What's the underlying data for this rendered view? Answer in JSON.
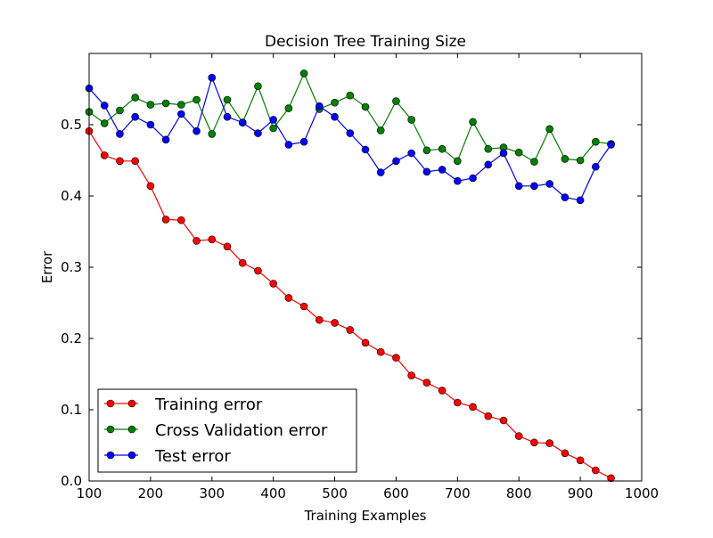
{
  "chart_data": {
    "type": "line",
    "title": "Decision Tree Training Size",
    "xlabel": "Training Examples",
    "ylabel": "Error",
    "xlim": [
      100,
      1000
    ],
    "ylim": [
      0.0,
      0.6
    ],
    "xticks": [
      100,
      200,
      300,
      400,
      500,
      600,
      700,
      800,
      900,
      1000
    ],
    "xtick_labels": [
      "100",
      "200",
      "300",
      "400",
      "500",
      "600",
      "700",
      "800",
      "900",
      "1000"
    ],
    "yticks": [
      0.0,
      0.1,
      0.2,
      0.3,
      0.4,
      0.5
    ],
    "ytick_labels": [
      "0.0",
      "0.1",
      "0.2",
      "0.3",
      "0.4",
      "0.5"
    ],
    "grid": false,
    "legend_position": "lower-left",
    "x": [
      100,
      125,
      150,
      175,
      200,
      225,
      250,
      275,
      300,
      325,
      350,
      375,
      400,
      425,
      450,
      475,
      500,
      525,
      550,
      575,
      600,
      625,
      650,
      675,
      700,
      725,
      750,
      775,
      800,
      825,
      850,
      875,
      900,
      925,
      950
    ],
    "series": [
      {
        "name": "Training error",
        "color": "#ff0000",
        "values": [
          0.491,
          0.457,
          0.449,
          0.449,
          0.414,
          0.367,
          0.366,
          0.337,
          0.339,
          0.329,
          0.306,
          0.295,
          0.277,
          0.257,
          0.245,
          0.226,
          0.222,
          0.212,
          0.194,
          0.181,
          0.173,
          0.148,
          0.138,
          0.127,
          0.11,
          0.104,
          0.091,
          0.085,
          0.063,
          0.054,
          0.053,
          0.039,
          0.029,
          0.015,
          0.004
        ]
      },
      {
        "name": "Cross Validation error",
        "color": "#008000",
        "values": [
          0.518,
          0.502,
          0.52,
          0.538,
          0.528,
          0.53,
          0.528,
          0.535,
          0.487,
          0.535,
          0.503,
          0.554,
          0.495,
          0.523,
          0.572,
          0.522,
          0.531,
          0.541,
          0.525,
          0.492,
          0.533,
          0.507,
          0.464,
          0.466,
          0.449,
          0.504,
          0.466,
          0.468,
          0.461,
          0.448,
          0.494,
          0.452,
          0.45,
          0.476,
          0.473
        ]
      },
      {
        "name": "Test error",
        "color": "#0000ff",
        "values": [
          0.551,
          0.527,
          0.487,
          0.511,
          0.5,
          0.479,
          0.515,
          0.491,
          0.566,
          0.511,
          0.503,
          0.488,
          0.507,
          0.472,
          0.476,
          0.526,
          0.511,
          0.488,
          0.465,
          0.433,
          0.449,
          0.46,
          0.434,
          0.437,
          0.421,
          0.425,
          0.444,
          0.46,
          0.414,
          0.414,
          0.417,
          0.398,
          0.394,
          0.441,
          0.472
        ]
      }
    ]
  }
}
